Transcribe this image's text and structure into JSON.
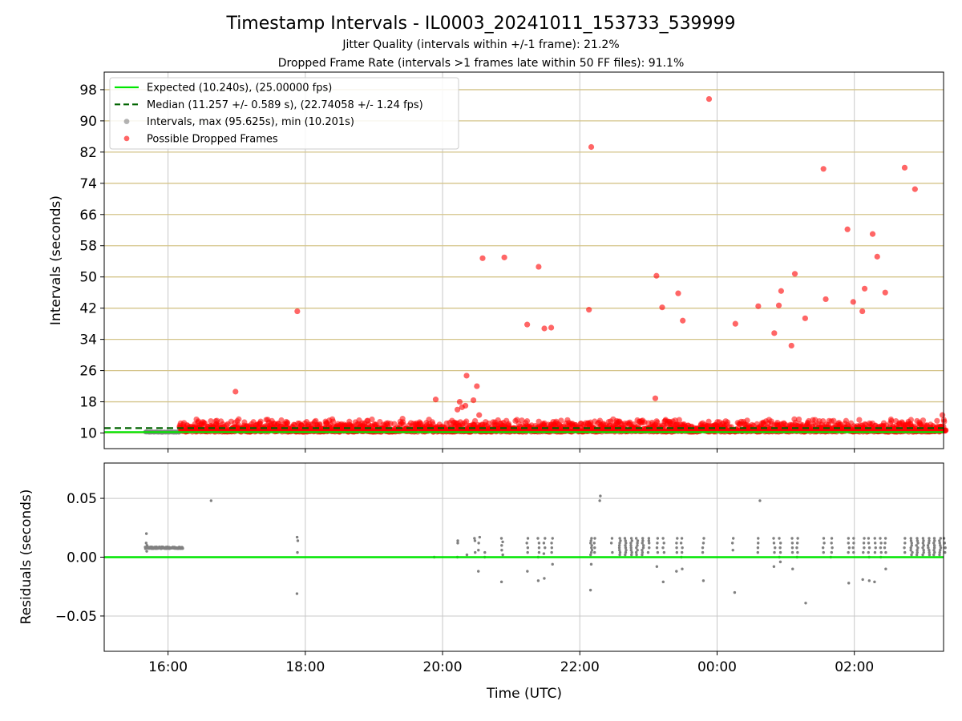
{
  "figure": {
    "title": "Timestamp Intervals - IL0003_20241011_153733_539999",
    "subtitle1": "Jitter Quality (intervals within +/-1 frame): 21.2%",
    "subtitle2": "Dropped Frame Rate (intervals >1 frames late within 50 FF files): 91.1%"
  },
  "colors": {
    "expected": "#00e600",
    "median": "#006400",
    "intervals": "#808080",
    "dropped": "#ff0000",
    "hgrid_top": "#d4c48a",
    "grid": "#c8c8c8"
  },
  "chart_data": [
    {
      "type": "scatter",
      "ylabel": "Intervals (seconds)",
      "ylim": [
        6,
        102.5
      ],
      "yticks": [
        10,
        18,
        26,
        34,
        42,
        50,
        58,
        66,
        74,
        82,
        90,
        98
      ],
      "xlim_hours": [
        15.07,
        27.3
      ],
      "xticks": [
        {
          "h": 16,
          "label": "16:00"
        },
        {
          "h": 18,
          "label": "18:00"
        },
        {
          "h": 20,
          "label": "20:00"
        },
        {
          "h": 22,
          "label": "22:00"
        },
        {
          "h": 24,
          "label": "00:00"
        },
        {
          "h": 26,
          "label": "02:00"
        }
      ],
      "expected_interval": 10.24,
      "median_interval": 11.257,
      "legend": {
        "position": "top-left",
        "entries": [
          {
            "label": "Expected (10.240s), (25.00000 fps)",
            "style": "solid-line",
            "color": "#00e600"
          },
          {
            "label": "Median (11.257 +/- 0.589 s), (22.74058 +/- 1.24 fps)",
            "style": "dashed-line",
            "color": "#006400"
          },
          {
            "label": "Intervals, max (95.625s), min (10.201s)",
            "style": "dot",
            "color": "#808080"
          },
          {
            "label": "Possible Dropped Frames",
            "style": "dot",
            "color": "#ff0000"
          }
        ]
      },
      "normal_band": {
        "time_range": [
          "15:40",
          "16:10"
        ],
        "value": 10.24
      },
      "dense_band": {
        "time_range": [
          "16:10",
          "03:20"
        ],
        "typical_range": [
          10.3,
          12.8
        ]
      },
      "dropped_outliers": [
        {
          "t": "16:59",
          "v": 20.6
        },
        {
          "t": "17:53",
          "v": 41.2
        },
        {
          "t": "19:54",
          "v": 18.6
        },
        {
          "t": "20:13",
          "v": 16.0
        },
        {
          "t": "20:15",
          "v": 18.0
        },
        {
          "t": "20:17",
          "v": 16.6
        },
        {
          "t": "20:20",
          "v": 17.0
        },
        {
          "t": "20:21",
          "v": 24.7
        },
        {
          "t": "20:27",
          "v": 18.4
        },
        {
          "t": "20:30",
          "v": 22.0
        },
        {
          "t": "20:32",
          "v": 14.6
        },
        {
          "t": "20:35",
          "v": 54.8
        },
        {
          "t": "20:54",
          "v": 55.0
        },
        {
          "t": "21:14",
          "v": 37.8
        },
        {
          "t": "21:24",
          "v": 52.6
        },
        {
          "t": "21:29",
          "v": 36.8
        },
        {
          "t": "21:35",
          "v": 37.0
        },
        {
          "t": "22:08",
          "v": 41.6
        },
        {
          "t": "22:10",
          "v": 83.3
        },
        {
          "t": "23:06",
          "v": 18.9
        },
        {
          "t": "23:07",
          "v": 50.3
        },
        {
          "t": "23:12",
          "v": 42.2
        },
        {
          "t": "23:26",
          "v": 45.8
        },
        {
          "t": "23:30",
          "v": 38.8
        },
        {
          "t": "23:53",
          "v": 95.6
        },
        {
          "t": "00:16",
          "v": 38.0
        },
        {
          "t": "00:36",
          "v": 42.5
        },
        {
          "t": "00:50",
          "v": 35.6
        },
        {
          "t": "00:54",
          "v": 42.7
        },
        {
          "t": "00:56",
          "v": 46.4
        },
        {
          "t": "01:05",
          "v": 32.4
        },
        {
          "t": "01:08",
          "v": 50.8
        },
        {
          "t": "01:17",
          "v": 39.4
        },
        {
          "t": "01:33",
          "v": 77.7
        },
        {
          "t": "01:35",
          "v": 44.3
        },
        {
          "t": "01:54",
          "v": 62.2
        },
        {
          "t": "01:59",
          "v": 43.6
        },
        {
          "t": "02:07",
          "v": 41.2
        },
        {
          "t": "02:09",
          "v": 47.0
        },
        {
          "t": "02:16",
          "v": 61.0
        },
        {
          "t": "02:20",
          "v": 55.2
        },
        {
          "t": "02:27",
          "v": 46.0
        },
        {
          "t": "02:44",
          "v": 78.0
        },
        {
          "t": "02:53",
          "v": 72.5
        },
        {
          "t": "03:17",
          "v": 14.6
        }
      ]
    },
    {
      "type": "scatter",
      "xlabel": "Time (UTC)",
      "ylabel": "Residuals (seconds)",
      "ylim": [
        -0.08,
        0.08
      ],
      "yticks": [
        {
          "v": 0.05,
          "label": "0.05"
        },
        {
          "v": 0.0,
          "label": "0.00"
        },
        {
          "v": -0.05,
          "label": "−0.05"
        }
      ],
      "zero_line": 0,
      "residual_band": {
        "time_range": [
          "15:40",
          "16:13"
        ],
        "value": 0.008
      },
      "clusters": [
        {
          "t": "15:41",
          "vals": [
            0.02,
            0.012,
            0.01,
            0.005
          ]
        },
        {
          "t": "16:38",
          "vals": [
            0.048
          ]
        },
        {
          "t": "17:53",
          "vals": [
            0.017,
            0.014,
            0.004,
            -0.031
          ]
        },
        {
          "t": "19:53",
          "vals": [
            0.0
          ]
        },
        {
          "t": "20:13",
          "vals": [
            0.014,
            0.012,
            0.0
          ]
        },
        {
          "t": "20:21",
          "vals": [
            0.002
          ]
        },
        {
          "t": "20:28",
          "vals": [
            0.016,
            0.014,
            0.004
          ]
        },
        {
          "t": "20:32",
          "vals": [
            0.017,
            0.012,
            0.006,
            -0.012
          ]
        },
        {
          "t": "20:37",
          "vals": [
            0.004,
            0.0
          ]
        },
        {
          "t": "20:52",
          "vals": [
            0.016,
            0.013,
            0.01,
            0.006,
            0.002,
            -0.021
          ]
        },
        {
          "t": "21:14",
          "vals": [
            0.016,
            0.012,
            0.008,
            0.004,
            -0.012
          ]
        },
        {
          "t": "21:24",
          "vals": [
            0.016,
            0.012,
            0.008,
            0.004,
            0.0,
            -0.02
          ]
        },
        {
          "t": "21:29",
          "vals": [
            0.016,
            0.012,
            0.008,
            0.003,
            -0.018
          ]
        },
        {
          "t": "21:36",
          "vals": [
            0.016,
            0.012,
            0.008,
            0.004,
            -0.006
          ]
        },
        {
          "t": "22:10",
          "vals": [
            0.016,
            0.014,
            0.012,
            0.01,
            0.008,
            0.006,
            0.004,
            0.002,
            -0.006,
            -0.028
          ]
        },
        {
          "t": "22:13",
          "vals": [
            0.016,
            0.012,
            0.008,
            0.004
          ]
        },
        {
          "t": "22:18",
          "vals": [
            0.052,
            0.048
          ]
        },
        {
          "t": "22:28",
          "vals": [
            0.016,
            0.012,
            0.004
          ]
        },
        {
          "t": "22:35",
          "vals": [
            0.016,
            0.014,
            0.012,
            0.01,
            0.008,
            0.006,
            0.004,
            0.002
          ]
        },
        {
          "t": "22:40",
          "vals": [
            0.016,
            0.014,
            0.012,
            0.01,
            0.008,
            0.006,
            0.004,
            0.002
          ]
        },
        {
          "t": "22:45",
          "vals": [
            0.016,
            0.014,
            0.012,
            0.01,
            0.008,
            0.006,
            0.004,
            0.002
          ]
        },
        {
          "t": "22:50",
          "vals": [
            0.016,
            0.014,
            0.012,
            0.01,
            0.008,
            0.006,
            0.004,
            0.002
          ]
        },
        {
          "t": "22:55",
          "vals": [
            0.016,
            0.014,
            0.012,
            0.01,
            0.008,
            0.006,
            0.004,
            0.002
          ]
        },
        {
          "t": "23:00",
          "vals": [
            0.016,
            0.014,
            0.012,
            0.008,
            0.004
          ]
        },
        {
          "t": "23:08",
          "vals": [
            0.016,
            0.012,
            0.008,
            0.004,
            -0.008
          ]
        },
        {
          "t": "23:13",
          "vals": [
            0.016,
            0.012,
            0.008,
            0.004,
            -0.021
          ]
        },
        {
          "t": "23:25",
          "vals": [
            0.016,
            0.012,
            0.008,
            0.004,
            -0.012
          ]
        },
        {
          "t": "23:29",
          "vals": [
            0.016,
            0.012,
            0.008,
            0.004,
            0.0,
            -0.01
          ]
        },
        {
          "t": "23:48",
          "vals": [
            0.016,
            0.012,
            0.008,
            0.004,
            -0.02
          ]
        },
        {
          "t": "00:14",
          "vals": [
            0.016,
            0.012,
            0.006
          ]
        },
        {
          "t": "00:15",
          "vals": [
            -0.03
          ]
        },
        {
          "t": "00:36",
          "vals": [
            0.016,
            0.012,
            0.008,
            0.004
          ]
        },
        {
          "t": "00:37",
          "vals": [
            0.048
          ]
        },
        {
          "t": "00:50",
          "vals": [
            0.016,
            0.012,
            0.008,
            0.004,
            -0.008
          ]
        },
        {
          "t": "00:55",
          "vals": [
            0.016,
            0.012,
            0.008,
            0.004,
            0.0,
            -0.004
          ]
        },
        {
          "t": "01:06",
          "vals": [
            0.016,
            0.012,
            0.008,
            0.004,
            -0.01
          ]
        },
        {
          "t": "01:10",
          "vals": [
            0.016,
            0.012,
            0.008,
            0.004,
            0.0
          ]
        },
        {
          "t": "01:17",
          "vals": [
            -0.039
          ]
        },
        {
          "t": "01:33",
          "vals": [
            0.016,
            0.012,
            0.008,
            0.004
          ]
        },
        {
          "t": "01:40",
          "vals": [
            0.016,
            0.012,
            0.008,
            0.004,
            0.0
          ]
        },
        {
          "t": "01:55",
          "vals": [
            0.016,
            0.012,
            0.008,
            0.004,
            -0.022
          ]
        },
        {
          "t": "01:59",
          "vals": [
            0.016,
            0.012,
            0.008,
            0.004
          ]
        },
        {
          "t": "02:08",
          "vals": [
            0.016,
            0.012,
            0.008,
            0.004,
            -0.019
          ]
        },
        {
          "t": "02:13",
          "vals": [
            0.016,
            0.012,
            0.008,
            0.004,
            0.0,
            -0.02
          ]
        },
        {
          "t": "02:18",
          "vals": [
            0.016,
            0.012,
            0.008,
            0.004,
            -0.021
          ]
        },
        {
          "t": "02:23",
          "vals": [
            0.016,
            0.012,
            0.008,
            0.004,
            0.0
          ]
        },
        {
          "t": "02:27",
          "vals": [
            0.016,
            0.012,
            0.008,
            0.004,
            -0.01
          ]
        },
        {
          "t": "02:44",
          "vals": [
            0.016,
            0.012,
            0.008,
            0.004
          ]
        },
        {
          "t": "02:50",
          "vals": [
            0.016,
            0.014,
            0.012,
            0.01,
            0.008,
            0.006,
            0.004,
            0.002
          ]
        },
        {
          "t": "02:55",
          "vals": [
            0.016,
            0.014,
            0.012,
            0.01,
            0.008,
            0.006,
            0.004,
            0.002
          ]
        },
        {
          "t": "03:00",
          "vals": [
            0.016,
            0.014,
            0.012,
            0.01,
            0.008,
            0.006,
            0.004,
            0.002
          ]
        },
        {
          "t": "03:05",
          "vals": [
            0.016,
            0.014,
            0.012,
            0.01,
            0.008,
            0.006,
            0.004,
            0.002
          ]
        },
        {
          "t": "03:10",
          "vals": [
            0.016,
            0.014,
            0.012,
            0.01,
            0.008,
            0.006,
            0.004,
            0.002
          ]
        },
        {
          "t": "03:15",
          "vals": [
            0.016,
            0.014,
            0.012,
            0.01,
            0.008,
            0.006,
            0.004,
            0.002
          ]
        },
        {
          "t": "03:19",
          "vals": [
            0.016,
            0.012,
            0.008,
            0.004
          ]
        }
      ]
    }
  ]
}
